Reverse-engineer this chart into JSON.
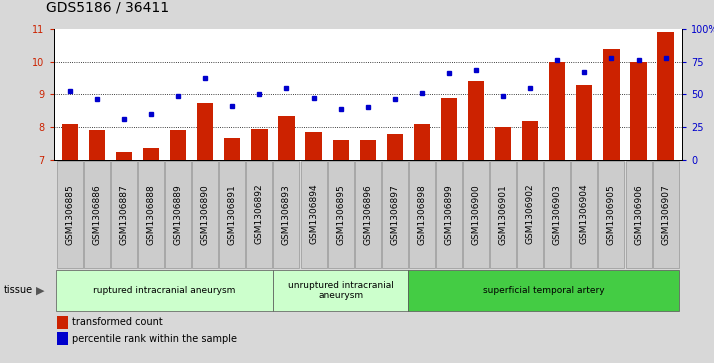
{
  "title": "GDS5186 / 36411",
  "samples": [
    "GSM1306885",
    "GSM1306886",
    "GSM1306887",
    "GSM1306888",
    "GSM1306889",
    "GSM1306890",
    "GSM1306891",
    "GSM1306892",
    "GSM1306893",
    "GSM1306894",
    "GSM1306895",
    "GSM1306896",
    "GSM1306897",
    "GSM1306898",
    "GSM1306899",
    "GSM1306900",
    "GSM1306901",
    "GSM1306902",
    "GSM1306903",
    "GSM1306904",
    "GSM1306905",
    "GSM1306906",
    "GSM1306907"
  ],
  "bar_values": [
    8.1,
    7.9,
    7.25,
    7.35,
    7.9,
    8.75,
    7.65,
    7.95,
    8.35,
    7.85,
    7.6,
    7.6,
    7.8,
    8.1,
    8.9,
    9.4,
    8.0,
    8.2,
    10.0,
    9.3,
    10.4,
    10.0,
    10.9
  ],
  "dot_values": [
    9.1,
    8.85,
    8.25,
    8.4,
    8.95,
    9.5,
    8.65,
    9.0,
    9.2,
    8.9,
    8.55,
    8.6,
    8.85,
    9.05,
    9.65,
    9.75,
    8.95,
    9.2,
    10.05,
    9.7,
    10.1,
    10.05,
    10.1
  ],
  "bar_color": "#cc2200",
  "dot_color": "#0000cc",
  "ylim_left": [
    7,
    11
  ],
  "ylim_right": [
    0,
    100
  ],
  "yticks_left": [
    7,
    8,
    9,
    10,
    11
  ],
  "yticks_right": [
    0,
    25,
    50,
    75,
    100
  ],
  "ytick_labels_right": [
    "0",
    "25",
    "50",
    "75",
    "100%"
  ],
  "groups": [
    {
      "label": "ruptured intracranial aneurysm",
      "start": 0,
      "end": 8,
      "color": "#ccffcc"
    },
    {
      "label": "unruptured intracranial\naneurysm",
      "start": 8,
      "end": 13,
      "color": "#ccffcc"
    },
    {
      "label": "superficial temporal artery",
      "start": 13,
      "end": 23,
      "color": "#44cc44"
    }
  ],
  "tissue_label": "tissue",
  "legend_bar_label": "transformed count",
  "legend_dot_label": "percentile rank within the sample",
  "bg_color": "#d8d8d8",
  "plot_bg_color": "#ffffff",
  "xtick_bg_color": "#cccccc",
  "gridline_color": "#000000",
  "title_fontsize": 10,
  "tick_fontsize": 7,
  "label_fontsize": 7
}
